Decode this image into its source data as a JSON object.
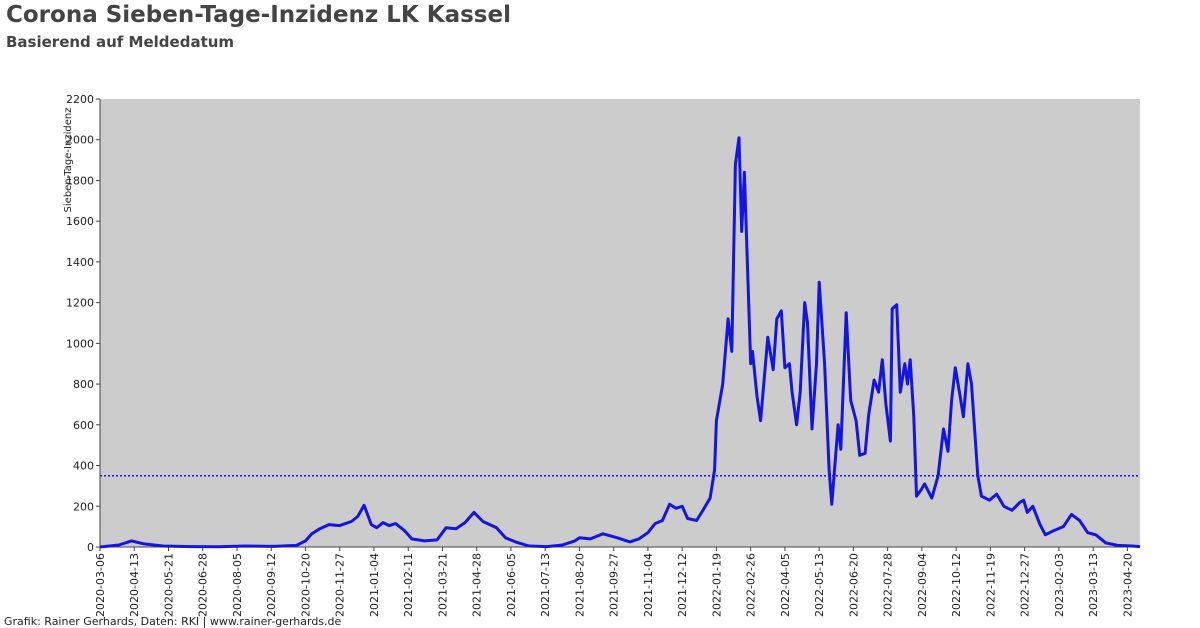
{
  "chart_data": {
    "type": "line",
    "title": "Corona Sieben-Tage-Inzidenz LK Kassel",
    "subtitle": "Basierend auf Meldedatum",
    "y_label": "Sieben-Tage-Inzidenz",
    "footer": "Grafik: Rainer Gerhards, Daten: RKI | www.rainer-gerhards.de",
    "color": "#1414e6",
    "reference_line": 350,
    "reference_color": "#1414e6",
    "background": "#cccccc",
    "xlim": [
      "2020-03-06",
      "2023-05-04"
    ],
    "xticks": [
      "2020-03-06",
      "2020-04-13",
      "2020-05-21",
      "2020-06-28",
      "2020-08-05",
      "2020-09-12",
      "2020-10-20",
      "2020-11-27",
      "2021-01-04",
      "2021-02-11",
      "2021-03-21",
      "2021-04-28",
      "2021-06-05",
      "2021-07-13",
      "2021-08-20",
      "2021-09-27",
      "2021-11-04",
      "2021-12-12",
      "2022-01-19",
      "2022-02-26",
      "2022-04-05",
      "2022-05-13",
      "2022-06-20",
      "2022-07-28",
      "2022-09-04",
      "2022-10-12",
      "2022-11-19",
      "2022-12-27",
      "2023-02-03",
      "2023-03-13",
      "2023-04-20"
    ],
    "ylim": [
      0,
      2200
    ],
    "yticks": [
      0,
      200,
      400,
      600,
      800,
      1000,
      1200,
      1400,
      1600,
      1800,
      2000,
      2200
    ],
    "x": [
      "2020-03-06",
      "2020-03-27",
      "2020-04-10",
      "2020-04-24",
      "2020-05-15",
      "2020-06-15",
      "2020-07-15",
      "2020-08-15",
      "2020-09-15",
      "2020-10-10",
      "2020-10-20",
      "2020-10-27",
      "2020-11-05",
      "2020-11-15",
      "2020-11-27",
      "2020-12-10",
      "2020-12-17",
      "2020-12-24",
      "2021-01-01",
      "2021-01-07",
      "2021-01-14",
      "2021-01-21",
      "2021-01-28",
      "2021-02-07",
      "2021-02-15",
      "2021-03-01",
      "2021-03-15",
      "2021-03-25",
      "2021-04-05",
      "2021-04-15",
      "2021-04-25",
      "2021-05-05",
      "2021-05-20",
      "2021-05-30",
      "2021-06-10",
      "2021-06-25",
      "2021-07-15",
      "2021-08-01",
      "2021-08-15",
      "2021-08-20",
      "2021-09-01",
      "2021-09-15",
      "2021-10-01",
      "2021-10-15",
      "2021-10-25",
      "2021-11-04",
      "2021-11-12",
      "2021-11-20",
      "2021-11-28",
      "2021-12-05",
      "2021-12-12",
      "2021-12-18",
      "2021-12-28",
      "2022-01-04",
      "2022-01-12",
      "2022-01-17",
      "2022-01-19",
      "2022-01-26",
      "2022-02-01",
      "2022-02-05",
      "2022-02-09",
      "2022-02-13",
      "2022-02-16",
      "2022-02-19",
      "2022-02-23",
      "2022-02-26",
      "2022-02-28",
      "2022-03-05",
      "2022-03-09",
      "2022-03-17",
      "2022-03-23",
      "2022-03-27",
      "2022-04-01",
      "2022-04-05",
      "2022-04-10",
      "2022-04-13",
      "2022-04-18",
      "2022-04-22",
      "2022-04-27",
      "2022-04-30",
      "2022-05-05",
      "2022-05-10",
      "2022-05-13",
      "2022-05-19",
      "2022-05-24",
      "2022-05-27",
      "2022-06-03",
      "2022-06-06",
      "2022-06-12",
      "2022-06-17",
      "2022-06-23",
      "2022-06-27",
      "2022-07-03",
      "2022-07-07",
      "2022-07-13",
      "2022-07-18",
      "2022-07-22",
      "2022-07-26",
      "2022-07-31",
      "2022-08-02",
      "2022-08-07",
      "2022-08-11",
      "2022-08-16",
      "2022-08-19",
      "2022-08-22",
      "2022-08-26",
      "2022-08-29",
      "2022-09-03",
      "2022-09-07",
      "2022-09-15",
      "2022-09-22",
      "2022-09-28",
      "2022-10-03",
      "2022-10-07",
      "2022-10-11",
      "2022-10-16",
      "2022-10-20",
      "2022-10-25",
      "2022-10-29",
      "2022-11-05",
      "2022-11-09",
      "2022-11-18",
      "2022-11-26",
      "2022-12-04",
      "2022-12-13",
      "2022-12-22",
      "2022-12-26",
      "2022-12-30",
      "2023-01-05",
      "2023-01-13",
      "2023-01-19",
      "2023-01-28",
      "2023-02-08",
      "2023-02-17",
      "2023-02-26",
      "2023-03-07",
      "2023-03-16",
      "2023-03-27",
      "2023-04-09",
      "2023-04-25",
      "2023-05-04"
    ],
    "values": [
      0,
      10,
      30,
      15,
      5,
      2,
      1,
      5,
      3,
      8,
      30,
      65,
      90,
      110,
      105,
      125,
      150,
      205,
      110,
      95,
      120,
      105,
      115,
      80,
      40,
      30,
      35,
      95,
      90,
      120,
      170,
      125,
      95,
      45,
      25,
      5,
      2,
      10,
      30,
      45,
      40,
      65,
      45,
      25,
      40,
      70,
      115,
      130,
      210,
      190,
      200,
      140,
      130,
      180,
      240,
      380,
      620,
      800,
      1120,
      960,
      1880,
      2010,
      1550,
      1840,
      1300,
      900,
      960,
      740,
      620,
      1030,
      870,
      1120,
      1160,
      880,
      900,
      760,
      600,
      760,
      1200,
      1100,
      580,
      900,
      1300,
      900,
      380,
      210,
      600,
      480,
      1150,
      720,
      620,
      450,
      460,
      650,
      820,
      760,
      920,
      700,
      520,
      1170,
      1190,
      760,
      900,
      800,
      920,
      640,
      250,
      280,
      310,
      240,
      350,
      580,
      470,
      720,
      880,
      750,
      640,
      900,
      800,
      350,
      250,
      230,
      260,
      200,
      180,
      220,
      230,
      170,
      200,
      110,
      60,
      80,
      100,
      160,
      130,
      70,
      60,
      20,
      8,
      5,
      2
    ]
  }
}
